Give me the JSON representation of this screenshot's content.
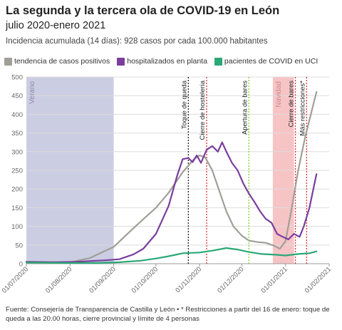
{
  "header": {
    "title": "La segunda y la tercera ola de COVID-19 en León",
    "subtitle": "julio 2020-enero 2021",
    "caption": "Incidencia acumulada (14 días): 928 casos por cada 100.000 habitantes"
  },
  "legend": [
    {
      "label": "tendencia de casos positivos",
      "color": "#a09f97"
    },
    {
      "label": "hospitalizados en planta",
      "color": "#7a3e9d"
    },
    {
      "label": "pacientes de COVID en UCI",
      "color": "#2aa876"
    }
  ],
  "footer": {
    "source": "Fuente: Consejería de Transparencia de Castilla y León • * Restricciones a partir del 16 de enero: toque de queda a las 20.00 horas, cierre provincial y límite de 4 personas"
  },
  "chart_data": {
    "type": "line",
    "x_start": "2020-07-01",
    "x_end": "2021-02-01",
    "ylim": [
      0,
      500
    ],
    "yticks": [
      0,
      50,
      100,
      150,
      200,
      250,
      300,
      350,
      400,
      450,
      500
    ],
    "xticks": [
      {
        "label": "01/07/2020",
        "date": "2020-07-01"
      },
      {
        "label": "01/08/2020",
        "date": "2020-08-01"
      },
      {
        "label": "01/09/2020",
        "date": "2020-09-01"
      },
      {
        "label": "01/10/2020",
        "date": "2020-10-01"
      },
      {
        "label": "01/11/2020",
        "date": "2020-11-01"
      },
      {
        "label": "01/12/2020",
        "date": "2020-12-01"
      },
      {
        "label": "01/01/2021",
        "date": "2021-01-01"
      },
      {
        "label": "01/02/2021",
        "date": "2021-02-01"
      }
    ],
    "bands": [
      {
        "label": "Verano",
        "start": "2020-07-01",
        "end": "2020-09-01",
        "color": "#cbcde3"
      },
      {
        "label": "Navidad",
        "start": "2020-12-23",
        "end": "2021-01-07",
        "color": "#f7c4c6"
      }
    ],
    "events": [
      {
        "label": "Toque de queda",
        "date": "2020-10-24",
        "color": "#222222"
      },
      {
        "label": "Cierre de hostelería",
        "date": "2020-11-06",
        "color": "#e02f2f"
      },
      {
        "label": "Apertura de bares",
        "date": "2020-12-06",
        "color": "#7ed321"
      },
      {
        "label": "Cierre de bares",
        "date": "2021-01-08",
        "color": "#e02f2f"
      },
      {
        "label": "Más restricciones*",
        "date": "2021-01-16",
        "color": "#e02f2f"
      }
    ],
    "series": [
      {
        "name": "tendencia de casos positivos",
        "color": "#a09f97",
        "points": [
          [
            "2020-07-01",
            3
          ],
          [
            "2020-07-15",
            2
          ],
          [
            "2020-08-01",
            4
          ],
          [
            "2020-08-15",
            15
          ],
          [
            "2020-09-01",
            45
          ],
          [
            "2020-09-15",
            95
          ],
          [
            "2020-10-01",
            150
          ],
          [
            "2020-10-10",
            190
          ],
          [
            "2020-10-20",
            245
          ],
          [
            "2020-10-28",
            280
          ],
          [
            "2020-11-01",
            290
          ],
          [
            "2020-11-05",
            285
          ],
          [
            "2020-11-10",
            250
          ],
          [
            "2020-11-15",
            195
          ],
          [
            "2020-11-20",
            140
          ],
          [
            "2020-11-25",
            100
          ],
          [
            "2020-12-01",
            75
          ],
          [
            "2020-12-06",
            62
          ],
          [
            "2020-12-12",
            58
          ],
          [
            "2020-12-18",
            56
          ],
          [
            "2020-12-24",
            48
          ],
          [
            "2020-12-28",
            40
          ],
          [
            "2021-01-01",
            60
          ],
          [
            "2021-01-05",
            140
          ],
          [
            "2021-01-10",
            250
          ],
          [
            "2021-01-15",
            340
          ],
          [
            "2021-01-19",
            400
          ],
          [
            "2021-01-23",
            460
          ]
        ]
      },
      {
        "name": "hospitalizados en planta",
        "color": "#7a3e9d",
        "points": [
          [
            "2020-07-01",
            5
          ],
          [
            "2020-07-20",
            4
          ],
          [
            "2020-08-05",
            5
          ],
          [
            "2020-08-15",
            7
          ],
          [
            "2020-08-25",
            9
          ],
          [
            "2020-09-05",
            12
          ],
          [
            "2020-09-15",
            25
          ],
          [
            "2020-09-22",
            40
          ],
          [
            "2020-10-01",
            80
          ],
          [
            "2020-10-10",
            155
          ],
          [
            "2020-10-16",
            235
          ],
          [
            "2020-10-20",
            280
          ],
          [
            "2020-10-24",
            283
          ],
          [
            "2020-10-27",
            272
          ],
          [
            "2020-10-30",
            290
          ],
          [
            "2020-11-02",
            270
          ],
          [
            "2020-11-06",
            305
          ],
          [
            "2020-11-10",
            315
          ],
          [
            "2020-11-14",
            300
          ],
          [
            "2020-11-17",
            325
          ],
          [
            "2020-11-20",
            300
          ],
          [
            "2020-11-24",
            270
          ],
          [
            "2020-11-28",
            250
          ],
          [
            "2020-12-02",
            215
          ],
          [
            "2020-12-06",
            188
          ],
          [
            "2020-12-10",
            165
          ],
          [
            "2020-12-14",
            140
          ],
          [
            "2020-12-18",
            120
          ],
          [
            "2020-12-22",
            110
          ],
          [
            "2020-12-26",
            80
          ],
          [
            "2020-12-30",
            72
          ],
          [
            "2021-01-03",
            65
          ],
          [
            "2021-01-07",
            80
          ],
          [
            "2021-01-11",
            72
          ],
          [
            "2021-01-14",
            100
          ],
          [
            "2021-01-18",
            150
          ],
          [
            "2021-01-23",
            240
          ]
        ]
      },
      {
        "name": "pacientes de COVID en UCI",
        "color": "#2aa876",
        "points": [
          [
            "2020-07-01",
            3
          ],
          [
            "2020-08-01",
            2
          ],
          [
            "2020-08-20",
            2
          ],
          [
            "2020-09-05",
            4
          ],
          [
            "2020-09-20",
            8
          ],
          [
            "2020-10-01",
            14
          ],
          [
            "2020-10-10",
            20
          ],
          [
            "2020-10-20",
            28
          ],
          [
            "2020-11-01",
            30
          ],
          [
            "2020-11-10",
            35
          ],
          [
            "2020-11-20",
            42
          ],
          [
            "2020-11-28",
            38
          ],
          [
            "2020-12-05",
            32
          ],
          [
            "2020-12-15",
            26
          ],
          [
            "2020-12-25",
            24
          ],
          [
            "2021-01-01",
            22
          ],
          [
            "2021-01-10",
            26
          ],
          [
            "2021-01-18",
            28
          ],
          [
            "2021-01-23",
            33
          ]
        ]
      }
    ]
  }
}
